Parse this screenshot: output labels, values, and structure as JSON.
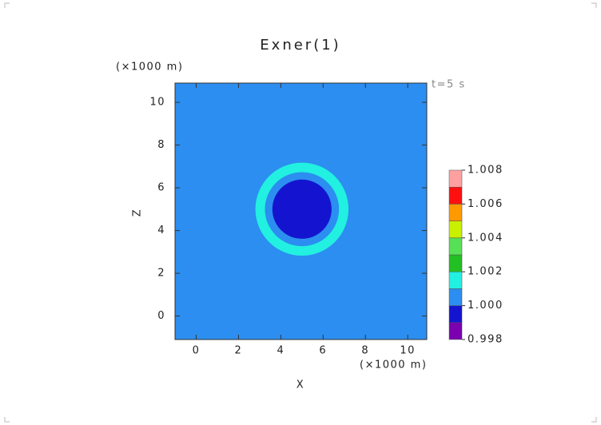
{
  "chart_data": {
    "type": "contour",
    "title": "Exner(1)",
    "xlabel": "X",
    "ylabel": "Z",
    "xunit": "(×1000 m)",
    "yunit": "(×1000 m)",
    "annotation": "t=5  s",
    "xlim": [
      -1,
      10.9
    ],
    "ylim": [
      -1.1,
      10.9
    ],
    "xticks": [
      0,
      2,
      4,
      6,
      8,
      10
    ],
    "yticks": [
      0,
      2,
      4,
      6,
      8,
      10
    ],
    "background": 1.0005,
    "center": [
      5,
      5
    ],
    "regions": [
      {
        "value": 1.0015,
        "radius": 2.2
      },
      {
        "value": 1.0005,
        "radius": 1.75
      },
      {
        "value": 0.9995,
        "radius": 1.4
      }
    ],
    "colorbar": {
      "levels": [
        0.998,
        0.999,
        1.0,
        1.001,
        1.002,
        1.003,
        1.004,
        1.005,
        1.006,
        1.007,
        1.008
      ],
      "colors": [
        "#7a00b0",
        "#1414d0",
        "#2b8ef0",
        "#22f0e0",
        "#22c022",
        "#55e055",
        "#c8f000",
        "#ff9900",
        "#ff1010",
        "#ffa0a0"
      ],
      "ticks": [
        1.008,
        1.006,
        1.004,
        1.002,
        {
          "value": 1.0,
          "label": "1.000"
        },
        0.998
      ]
    }
  }
}
